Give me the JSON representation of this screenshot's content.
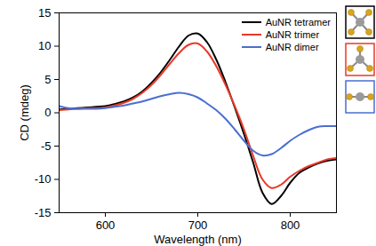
{
  "chart_data": {
    "type": "line",
    "xlabel": "Wavelength (nm)",
    "ylabel": "CD (mdeg)",
    "x": [
      550,
      560,
      570,
      580,
      590,
      600,
      610,
      620,
      630,
      640,
      650,
      660,
      670,
      680,
      690,
      700,
      710,
      720,
      730,
      740,
      750,
      760,
      770,
      780,
      790,
      800,
      810,
      820,
      830,
      840,
      850
    ],
    "series": [
      {
        "name": "AuNR tetramer",
        "color": "#000000",
        "values": [
          0.5,
          0.6,
          0.7,
          0.8,
          0.9,
          1.0,
          1.3,
          1.7,
          2.3,
          3.2,
          4.5,
          6.1,
          8.0,
          10.0,
          11.6,
          11.9,
          10.6,
          8.0,
          4.6,
          0.8,
          -3.2,
          -7.5,
          -12.0,
          -13.7,
          -12.5,
          -10.5,
          -9.0,
          -8.2,
          -7.6,
          -7.2,
          -7.0
        ]
      },
      {
        "name": "AuNR trimer",
        "color": "#e8392a",
        "values": [
          0.4,
          0.5,
          0.6,
          0.7,
          0.7,
          0.8,
          1.1,
          1.5,
          2.1,
          3.0,
          4.2,
          5.7,
          7.4,
          9.0,
          10.2,
          10.4,
          9.2,
          7.0,
          4.2,
          1.0,
          -2.5,
          -6.5,
          -10.0,
          -11.3,
          -10.8,
          -9.6,
          -8.7,
          -8.0,
          -7.5,
          -7.0,
          -6.8
        ]
      },
      {
        "name": "AuNR dimer",
        "color": "#4a6fd0",
        "values": [
          1.0,
          0.7,
          0.6,
          0.6,
          0.6,
          0.7,
          0.9,
          1.1,
          1.4,
          1.7,
          2.1,
          2.5,
          2.8,
          3.0,
          2.8,
          2.3,
          1.4,
          0.4,
          -0.9,
          -2.5,
          -4.2,
          -5.7,
          -6.4,
          -6.2,
          -5.3,
          -4.2,
          -3.3,
          -2.6,
          -2.1,
          -2.0,
          -2.0
        ]
      }
    ],
    "xlim": [
      550,
      850
    ],
    "xticks": [
      600,
      700,
      800
    ],
    "ylim": [
      -15,
      15
    ],
    "yticks": [
      -15,
      -10,
      -5,
      0,
      5,
      10,
      15
    ],
    "legend": "upper right",
    "grid": false
  }
}
